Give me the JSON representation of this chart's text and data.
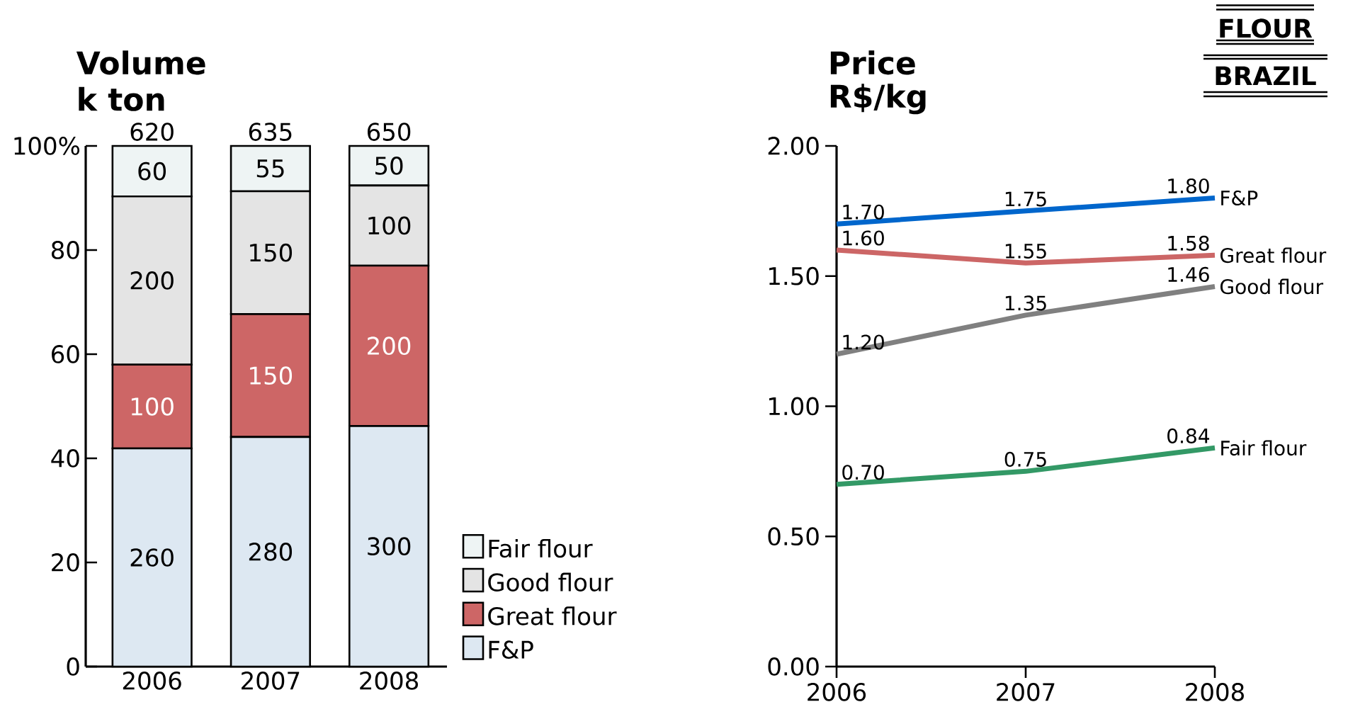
{
  "chart_data": [
    {
      "type": "bar",
      "title": "Volume",
      "subtitle": "k ton",
      "categories": [
        "2006",
        "2007",
        "2008"
      ],
      "stacked": true,
      "ylim": [
        0,
        100
      ],
      "yticks": [
        0,
        20,
        40,
        60,
        80,
        {
          "value": 100,
          "label": "100%"
        }
      ],
      "legend": "right",
      "series": [
        {
          "name": "F&P",
          "color": "#dde8f2",
          "values": [
            41.9,
            44.1,
            46.2
          ]
        },
        {
          "name": "Great flour",
          "color": "#cd6666",
          "values": [
            16.1,
            23.6,
            30.8
          ]
        },
        {
          "name": "Good flour",
          "color": "#e4e4e4",
          "values": [
            32.3,
            23.6,
            15.4
          ]
        },
        {
          "name": "Fair flour",
          "color": "#eef4f4",
          "values": [
            9.7,
            8.7,
            7.6
          ]
        }
      ],
      "annotations": [
        "260",
        "280",
        "300",
        "100",
        "150",
        "200",
        "200",
        "150",
        "100",
        "60",
        "55",
        "50",
        "620",
        "635",
        "650"
      ]
    },
    {
      "type": "line",
      "title": "Price",
      "subtitle": "R$/kg",
      "x": [
        2006,
        2007,
        2008
      ],
      "xlim": [
        2006,
        2008
      ],
      "xticks": [
        2006,
        2007,
        2008
      ],
      "ylim": [
        0,
        2
      ],
      "yticks": [
        {
          "value": 0,
          "label": "0.00"
        },
        {
          "value": 0.5,
          "label": "0.50"
        },
        {
          "value": 1,
          "label": "1.00"
        },
        {
          "value": 1.5,
          "label": "1.50"
        },
        {
          "value": 2,
          "label": "2.00"
        }
      ],
      "line_style": "solid",
      "annotations": [
        "FLOUR",
        "BRAZIL"
      ],
      "series": [
        {
          "name": "F&P",
          "color": "#0066cc",
          "values": [
            1.7,
            1.75,
            1.8
          ],
          "value_labels": [
            "1.70",
            "1.75",
            "1.80"
          ]
        },
        {
          "name": "Great flour",
          "color": "#cc6666",
          "values": [
            1.6,
            1.55,
            1.58
          ],
          "value_labels": [
            "1.60",
            "1.55",
            "1.58"
          ]
        },
        {
          "name": "Good flour",
          "color": "#808080",
          "values": [
            1.2,
            1.35,
            1.46
          ],
          "value_labels": [
            "1.20",
            "1.35",
            "1.46"
          ]
        },
        {
          "name": "Fair flour",
          "color": "#339966",
          "values": [
            0.7,
            0.75,
            0.84
          ],
          "value_labels": [
            "0.70",
            "0.75",
            "0.84"
          ]
        }
      ]
    }
  ]
}
